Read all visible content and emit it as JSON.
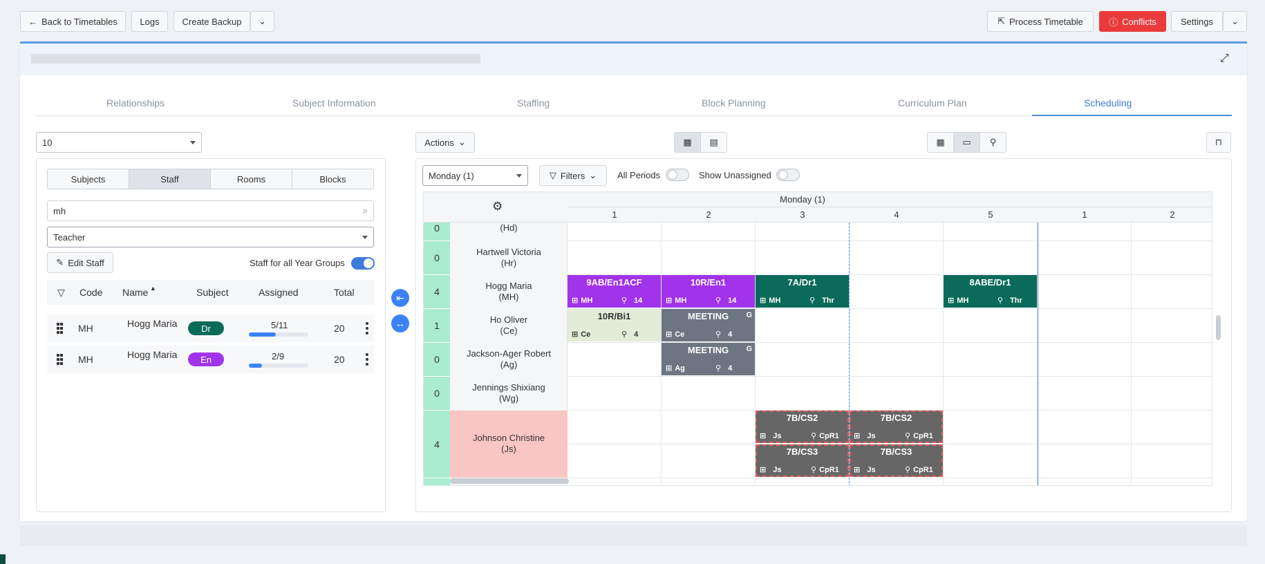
{
  "toolbar": {
    "back_label": "Back to Timetables",
    "logs_label": "Logs",
    "create_backup_label": "Create Backup",
    "process_label": "Process Timetable",
    "conflicts_label": "Conflicts",
    "settings_label": "Settings"
  },
  "tabs": [
    "Relationships",
    "Subject Information",
    "Staffing",
    "Block Planning",
    "Curriculum Plan",
    "Scheduling"
  ],
  "left": {
    "year_select": "10",
    "segments": [
      "Subjects",
      "Staff",
      "Rooms",
      "Blocks"
    ],
    "search_value": "mh",
    "role_select": "Teacher",
    "edit_staff_label": "Edit Staff",
    "all_year_groups_label": "Staff for all Year Groups",
    "columns": [
      "Code",
      "Name",
      "Subject",
      "Assigned",
      "Total"
    ],
    "rows": [
      {
        "code": "MH",
        "name": "Hogg Maria",
        "subject": "Dr",
        "subject_color": "#0b6b5a",
        "assigned": "5/11",
        "progress": 0.4545,
        "total": "20"
      },
      {
        "code": "MH",
        "name": "Hogg Maria",
        "subject": "En",
        "subject_color": "#a133ea",
        "assigned": "2/9",
        "progress": 0.2222,
        "total": "20"
      }
    ]
  },
  "right": {
    "actions_label": "Actions",
    "day_select": "Monday (1)",
    "filters_label": "Filters",
    "all_periods_label": "All Periods",
    "show_unassigned_label": "Show Unassigned",
    "day_header": "Monday (1)",
    "periods": [
      "1",
      "2",
      "3",
      "4",
      "5",
      "1",
      "2"
    ],
    "staff_rows": [
      {
        "count": "0",
        "name": "(Hd)"
      },
      {
        "count": "0",
        "name": "Hartwell Victoria",
        "code": "(Hr)"
      },
      {
        "count": "4",
        "name": "Hogg Maria",
        "code": "(MH)"
      },
      {
        "count": "1",
        "name": "Ho Oliver",
        "code": "(Ce)"
      },
      {
        "count": "0",
        "name": "Jackson-Ager Robert",
        "code": "(Ag)"
      },
      {
        "count": "0",
        "name": "Jennings Shixiang",
        "code": "(Wg)"
      },
      {
        "count": "4",
        "name": "Johnson Christine",
        "code": "(Js)"
      }
    ],
    "lessons": [
      {
        "title": "9AB/En1ACF",
        "teacher": "MH",
        "room": "14",
        "color": "#a133ea"
      },
      {
        "title": "10R/En1",
        "teacher": "MH",
        "room": "14",
        "color": "#a133ea"
      },
      {
        "title": "7A/Dr1",
        "teacher": "MH",
        "room": "Thr",
        "color": "#0b6b5a"
      },
      {
        "title": "8ABE/Dr1",
        "teacher": "MH",
        "room": "Thr",
        "color": "#0b6b5a"
      },
      {
        "title": "10R/Bi1",
        "teacher": "Ce",
        "room": "4",
        "color": "#e2ecd6"
      },
      {
        "title": "MEETING",
        "teacher": "Ce",
        "room": "4",
        "flag": "G",
        "color": "#6e7582"
      },
      {
        "title": "MEETING",
        "teacher": "Ag",
        "room": "4",
        "flag": "G",
        "color": "#6e7582"
      },
      {
        "title": "7B/CS2",
        "teacher": "Js",
        "room": "CpR1",
        "color": "#666666"
      },
      {
        "title": "7B/CS2",
        "teacher": "Js",
        "room": "CpR1",
        "color": "#666666"
      },
      {
        "title": "7B/CS3",
        "teacher": "Js",
        "room": "CpR1",
        "color": "#666666"
      },
      {
        "title": "7B/CS3",
        "teacher": "Js",
        "room": "CpR1",
        "color": "#666666"
      }
    ]
  },
  "colors": {
    "accent": "#3b82f6",
    "conflict_red": "#ea3a3a",
    "count_green": "#a9ecd0",
    "highlight_pink": "#f9c6c4"
  }
}
